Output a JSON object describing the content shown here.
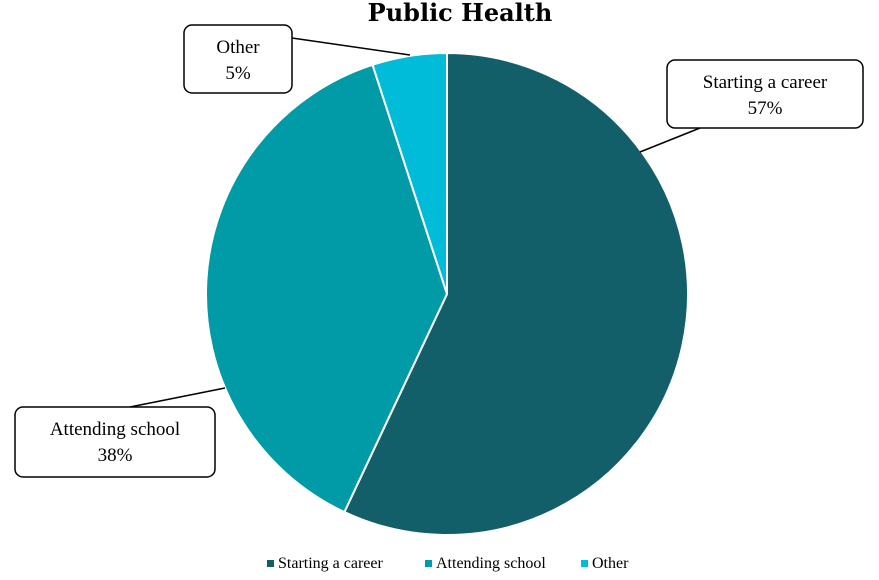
{
  "chart_data": {
    "type": "pie",
    "title": "Public Health",
    "categories": [
      "Starting a career",
      "Attending school",
      "Other"
    ],
    "values": [
      57,
      38,
      5
    ],
    "value_labels": [
      "57%",
      "38%",
      "5%"
    ],
    "colors": [
      "#135f69",
      "#009ba7",
      "#00bcd8"
    ],
    "legend": {
      "position": "bottom",
      "entries": [
        "Starting a career",
        "Attending school",
        "Other"
      ]
    },
    "start_angle_deg": 0,
    "direction": "clockwise"
  }
}
